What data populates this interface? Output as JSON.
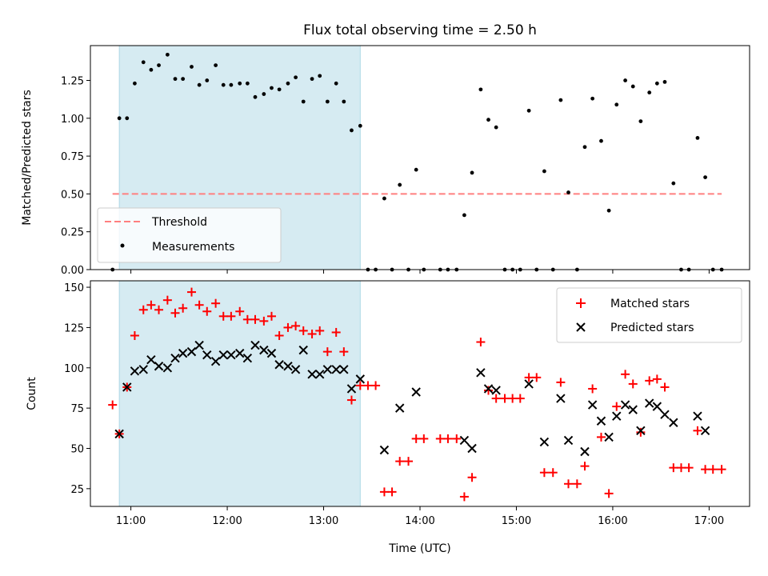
{
  "chart_data": {
    "type": "scatter",
    "title": "Flux total observing time = 2.50 h",
    "xlabel": "Time (UTC)",
    "x_units": "hours UTC (decimal)",
    "xlim": [
      10.58,
      17.42
    ],
    "xticks": [
      {
        "value": 11,
        "label": "11:00"
      },
      {
        "value": 12,
        "label": "12:00"
      },
      {
        "value": 13,
        "label": "13:00"
      },
      {
        "value": 14,
        "label": "14:00"
      },
      {
        "value": 15,
        "label": "15:00"
      },
      {
        "value": 16,
        "label": "16:00"
      },
      {
        "value": 17,
        "label": "17:00"
      }
    ],
    "shaded_span": {
      "x_start": 10.88,
      "x_end": 13.38,
      "color": "#add8e6"
    },
    "top": {
      "ylabel": "Matched/Predicted stars",
      "ylim": [
        0,
        1.48
      ],
      "yticks": [
        {
          "value": 0.0,
          "label": "0.00"
        },
        {
          "value": 0.25,
          "label": "0.25"
        },
        {
          "value": 0.5,
          "label": "0.50"
        },
        {
          "value": 0.75,
          "label": "0.75"
        },
        {
          "value": 1.0,
          "label": "1.00"
        },
        {
          "value": 1.25,
          "label": "1.25"
        }
      ],
      "threshold": {
        "name": "Threshold",
        "value": 0.5,
        "x_start": 10.81,
        "x_end": 17.13,
        "color": "#ff7f7f"
      },
      "measurements": {
        "name": "Measurements",
        "color": "#000000",
        "x": [
          10.81,
          10.88,
          10.96,
          11.04,
          11.13,
          11.21,
          11.29,
          11.38,
          11.46,
          11.54,
          11.63,
          11.71,
          11.79,
          11.88,
          11.96,
          12.04,
          12.13,
          12.21,
          12.29,
          12.38,
          12.46,
          12.54,
          12.63,
          12.71,
          12.79,
          12.88,
          12.96,
          13.04,
          13.13,
          13.21,
          13.29,
          13.38,
          13.46,
          13.54,
          13.63,
          13.71,
          13.79,
          13.88,
          13.96,
          14.04,
          14.21,
          14.29,
          14.38,
          14.46,
          14.54,
          14.63,
          14.71,
          14.79,
          14.88,
          14.96,
          15.04,
          15.13,
          15.21,
          15.29,
          15.38,
          15.46,
          15.54,
          15.63,
          15.71,
          15.79,
          15.88,
          15.96,
          16.04,
          16.13,
          16.21,
          16.29,
          16.38,
          16.46,
          16.54,
          16.63,
          16.71,
          16.79,
          16.88,
          16.96,
          17.04,
          17.13
        ],
        "y": [
          0.0,
          1.0,
          1.0,
          1.23,
          1.37,
          1.32,
          1.35,
          1.42,
          1.26,
          1.26,
          1.34,
          1.22,
          1.25,
          1.35,
          1.22,
          1.22,
          1.23,
          1.23,
          1.14,
          1.16,
          1.2,
          1.19,
          1.23,
          1.27,
          1.11,
          1.26,
          1.28,
          1.11,
          1.23,
          1.11,
          0.92,
          0.95,
          0.0,
          0.0,
          0.47,
          0.0,
          0.56,
          0.0,
          0.66,
          0.0,
          0.0,
          0.0,
          0.0,
          0.36,
          0.64,
          1.19,
          0.99,
          0.94,
          0.0,
          0.0,
          0.0,
          1.05,
          0.0,
          0.65,
          0.0,
          1.12,
          0.51,
          0.0,
          0.81,
          1.13,
          0.85,
          0.39,
          1.09,
          1.25,
          1.21,
          0.98,
          1.17,
          1.23,
          1.24,
          0.57,
          0.0,
          0.0,
          0.87,
          0.61,
          0.0,
          0.0
        ]
      }
    },
    "bottom": {
      "ylabel": "Count",
      "ylim": [
        14,
        154
      ],
      "yticks": [
        {
          "value": 25,
          "label": "25"
        },
        {
          "value": 50,
          "label": "50"
        },
        {
          "value": 75,
          "label": "75"
        },
        {
          "value": 100,
          "label": "100"
        },
        {
          "value": 125,
          "label": "125"
        },
        {
          "value": 150,
          "label": "150"
        }
      ],
      "series": [
        {
          "name": "Matched stars",
          "marker": "+",
          "color": "#ff0000",
          "x": [
            10.81,
            10.88,
            10.96,
            11.04,
            11.13,
            11.21,
            11.29,
            11.38,
            11.46,
            11.54,
            11.63,
            11.71,
            11.79,
            11.88,
            11.96,
            12.04,
            12.13,
            12.21,
            12.29,
            12.38,
            12.46,
            12.54,
            12.63,
            12.71,
            12.79,
            12.88,
            12.96,
            13.04,
            13.13,
            13.21,
            13.29,
            13.38,
            13.46,
            13.54,
            13.63,
            13.71,
            13.79,
            13.88,
            13.96,
            14.04,
            14.21,
            14.29,
            14.38,
            14.46,
            14.54,
            14.63,
            14.71,
            14.79,
            14.88,
            14.96,
            15.04,
            15.13,
            15.21,
            15.29,
            15.38,
            15.46,
            15.54,
            15.63,
            15.71,
            15.79,
            15.88,
            15.96,
            16.04,
            16.13,
            16.21,
            16.29,
            16.38,
            16.46,
            16.54,
            16.63,
            16.71,
            16.79,
            16.88,
            16.96,
            17.04,
            17.13
          ],
          "y": [
            77,
            59,
            88,
            120,
            136,
            139,
            136,
            142,
            134,
            137,
            147,
            139,
            135,
            140,
            132,
            132,
            135,
            130,
            130,
            129,
            132,
            120,
            125,
            126,
            123,
            121,
            123,
            110,
            122,
            110,
            80,
            89,
            89,
            89,
            23,
            23,
            42,
            42,
            56,
            56,
            56,
            56,
            56,
            20,
            32,
            116,
            86,
            81,
            81,
            81,
            81,
            94,
            94,
            35,
            35,
            91,
            28,
            28,
            39,
            87,
            57,
            22,
            76,
            96,
            90,
            60,
            92,
            93,
            88,
            38,
            38,
            38,
            61,
            37,
            37,
            37
          ]
        },
        {
          "name": "Predicted stars",
          "marker": "x",
          "color": "#000000",
          "x": [
            10.88,
            10.96,
            11.04,
            11.13,
            11.21,
            11.29,
            11.38,
            11.46,
            11.54,
            11.63,
            11.71,
            11.79,
            11.88,
            11.96,
            12.04,
            12.13,
            12.21,
            12.29,
            12.38,
            12.46,
            12.54,
            12.63,
            12.71,
            12.79,
            12.88,
            12.96,
            13.04,
            13.13,
            13.21,
            13.29,
            13.38,
            13.63,
            13.79,
            13.96,
            14.46,
            14.54,
            14.63,
            14.71,
            14.79,
            15.13,
            15.29,
            15.46,
            15.54,
            15.71,
            15.79,
            15.88,
            15.96,
            16.04,
            16.13,
            16.21,
            16.29,
            16.38,
            16.46,
            16.54,
            16.63,
            16.88,
            16.96
          ],
          "y": [
            59,
            88,
            98,
            99,
            105,
            101,
            100,
            106,
            109,
            110,
            114,
            108,
            104,
            108,
            108,
            109,
            106,
            114,
            111,
            109,
            102,
            101,
            99,
            111,
            96,
            96,
            99,
            99,
            99,
            87,
            93,
            49,
            75,
            85,
            55,
            50,
            97,
            87,
            86,
            90,
            54,
            81,
            55,
            48,
            77,
            67,
            57,
            70,
            77,
            74,
            61,
            78,
            76,
            71,
            66,
            70,
            61
          ]
        }
      ]
    }
  }
}
